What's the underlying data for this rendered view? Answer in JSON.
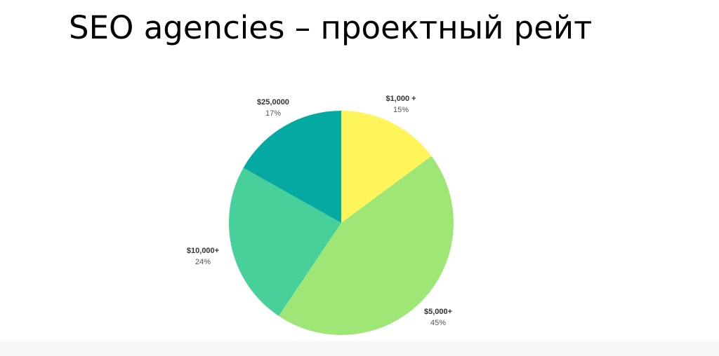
{
  "slide": {
    "title": "SEO agencies – проектный рейт"
  },
  "chart_data": {
    "type": "pie",
    "slices": [
      {
        "label": "$1,000 +",
        "value": 15,
        "value_label": "15%",
        "color": "#fdf55a"
      },
      {
        "label": "$5,000+",
        "value": 45,
        "value_label": "45%",
        "color": "#9ee776"
      },
      {
        "label": "$10,000+",
        "value": 24,
        "value_label": "24%",
        "color": "#48d09b"
      },
      {
        "label": "$25,0000",
        "value": 17,
        "value_label": "17%",
        "color": "#04aaa2"
      }
    ],
    "start": "top",
    "direction": "clockwise"
  }
}
